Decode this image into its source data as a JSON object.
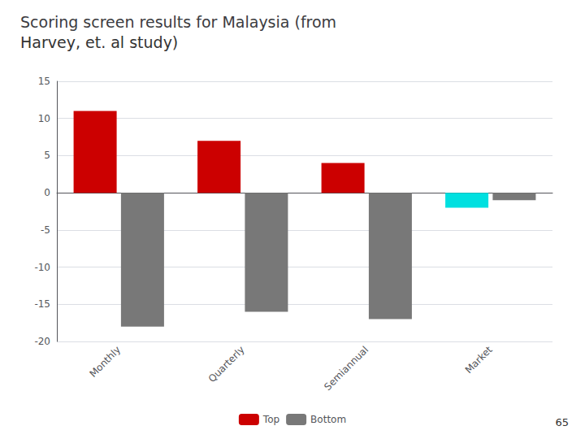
{
  "chart_data": {
    "type": "bar",
    "title": "Scoring screen results for Malaysia (from",
    "subtitle": "Harvey, et. al study)",
    "categories": [
      "Monthly",
      "Quarterly",
      "Semiannual",
      "Market"
    ],
    "series": [
      {
        "name": "Top",
        "colors": [
          "#cc0000",
          "#cc0000",
          "#cc0000",
          "#00e0e0"
        ],
        "values": [
          11,
          7,
          4,
          -2
        ]
      },
      {
        "name": "Bottom",
        "color": "#787878",
        "values": [
          -18,
          -16,
          -17,
          -1
        ]
      }
    ],
    "ylim": [
      -20,
      15
    ],
    "yticks": [
      -20,
      -15,
      -10,
      -5,
      0,
      5,
      10,
      15
    ],
    "grid": true,
    "legend": "bottom",
    "annotations": [
      "65"
    ]
  }
}
